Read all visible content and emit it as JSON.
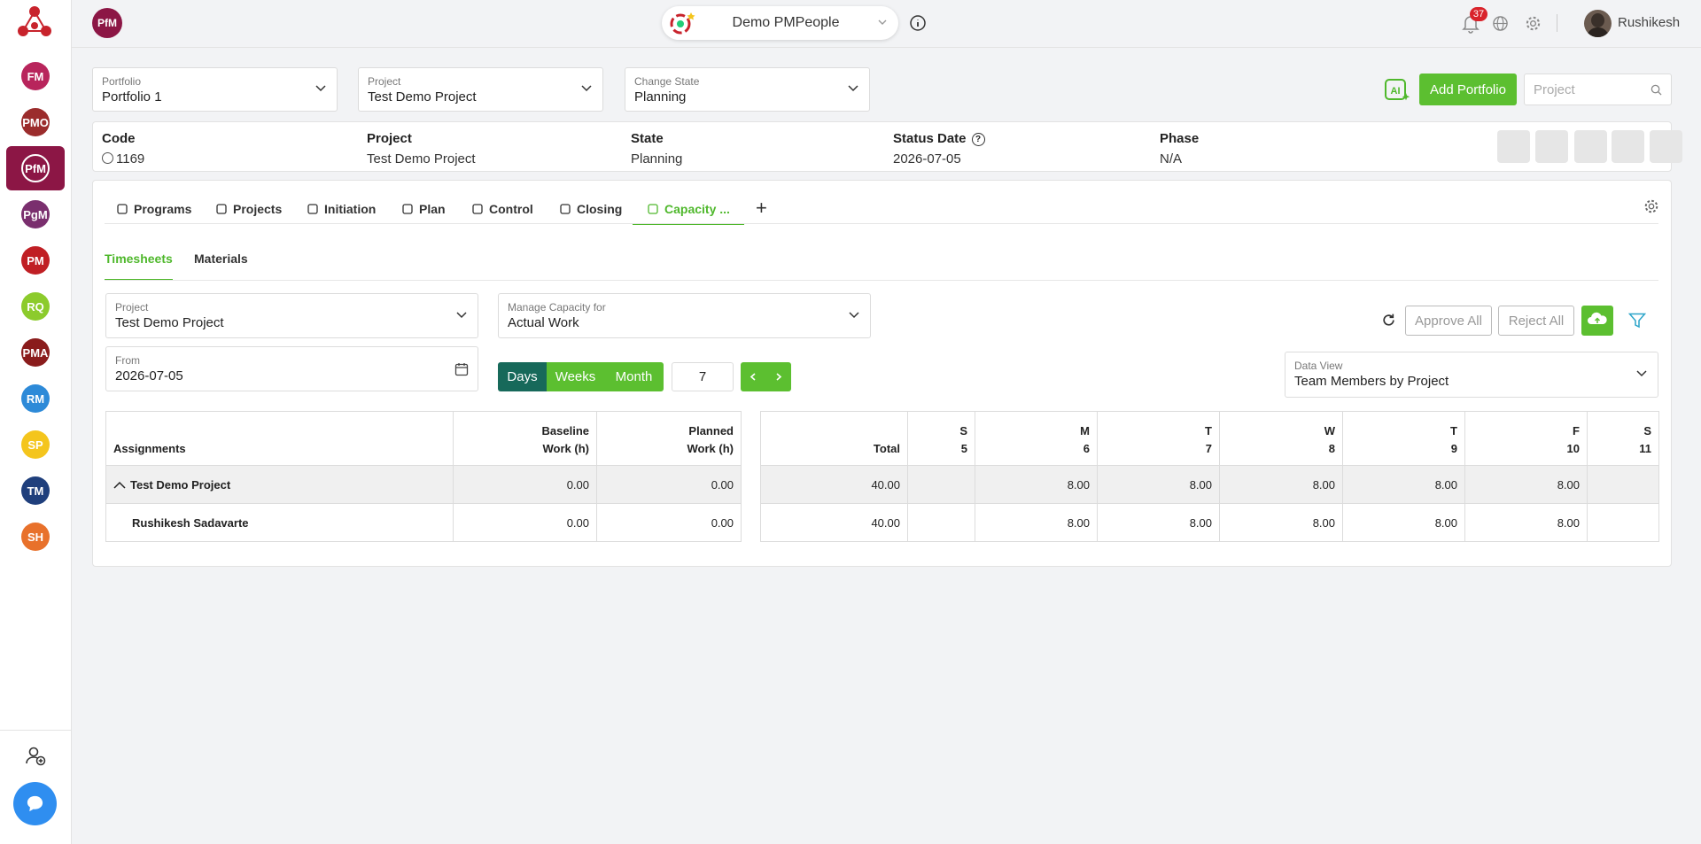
{
  "sidebar": {
    "items": [
      {
        "label": "FM",
        "color": "#b8255c"
      },
      {
        "label": "PMO",
        "color": "#9b2c2c"
      },
      {
        "label": "PfM",
        "color": "#8c1645",
        "selected": true
      },
      {
        "label": "PgM",
        "color": "#7a2f6e"
      },
      {
        "label": "PM",
        "color": "#c01f24"
      },
      {
        "label": "RQ",
        "color": "#8ccb2c"
      },
      {
        "label": "PMA",
        "color": "#8a1c1c"
      },
      {
        "label": "RM",
        "color": "#2d8ad8"
      },
      {
        "label": "SP",
        "color": "#f4c51d"
      },
      {
        "label": "TM",
        "color": "#1f3f7c"
      },
      {
        "label": "SH",
        "color": "#e8712b"
      }
    ]
  },
  "header": {
    "badge": "PfM",
    "workspace": "Demo PMPeople",
    "notifications": "37",
    "user": "Rushikesh"
  },
  "filters": [
    {
      "label": "Portfolio",
      "value": "Portfolio 1"
    },
    {
      "label": "Project",
      "value": "Test Demo Project"
    },
    {
      "label": "Change State",
      "value": "Planning"
    }
  ],
  "actions": {
    "add_button": "Add Portfolio",
    "search_placeholder": "Project"
  },
  "info": [
    {
      "label": "Code",
      "value": "1169"
    },
    {
      "label": "Project",
      "value": "Test Demo Project"
    },
    {
      "label": "State",
      "value": "Planning"
    },
    {
      "label": "Status Date",
      "value": "2026-07-05"
    },
    {
      "label": "Phase",
      "value": "N/A"
    }
  ],
  "tabs": [
    {
      "label": "Programs"
    },
    {
      "label": "Projects"
    },
    {
      "label": "Initiation"
    },
    {
      "label": "Plan"
    },
    {
      "label": "Control"
    },
    {
      "label": "Closing"
    },
    {
      "label": "Capacity ...",
      "active": true
    }
  ],
  "subtabs": [
    {
      "label": "Timesheets",
      "active": true
    },
    {
      "label": "Materials"
    }
  ],
  "form": {
    "project": {
      "label": "Project",
      "value": "Test Demo Project"
    },
    "capacity": {
      "label": "Manage Capacity for",
      "value": "Actual Work"
    },
    "from": {
      "label": "From",
      "value": "2026-07-05"
    },
    "periods": [
      {
        "label": "Days",
        "active": true
      },
      {
        "label": "Weeks"
      },
      {
        "label": "Month"
      }
    ],
    "count": "7",
    "approve": "Approve All",
    "reject": "Reject All",
    "data_view": {
      "label": "Data View",
      "value": "Team Members by Project"
    }
  },
  "table": {
    "assignments_header": "Assignments",
    "left_columns": [
      {
        "line1": "Baseline",
        "line2": "Work (h)"
      },
      {
        "line1": "Planned",
        "line2": "Work (h)"
      }
    ],
    "total_header": "Total",
    "days": [
      {
        "letter": "S",
        "date": "5"
      },
      {
        "letter": "M",
        "date": "6"
      },
      {
        "letter": "T",
        "date": "7"
      },
      {
        "letter": "W",
        "date": "8"
      },
      {
        "letter": "T",
        "date": "9"
      },
      {
        "letter": "F",
        "date": "10"
      },
      {
        "letter": "S",
        "date": "11"
      }
    ],
    "rows": [
      {
        "name": "Test Demo Project",
        "group": true,
        "baseline": "0.00",
        "planned": "0.00",
        "total": "40.00",
        "days": [
          null,
          "8.00",
          "8.00",
          "8.00",
          "8.00",
          "8.00",
          null
        ]
      },
      {
        "name": "Rushikesh Sadavarte",
        "baseline": "0.00",
        "planned": "0.00",
        "total": "40.00",
        "days": [
          null,
          "8.00",
          "8.00",
          "8.00",
          "8.00",
          "8.00",
          null
        ]
      }
    ]
  }
}
